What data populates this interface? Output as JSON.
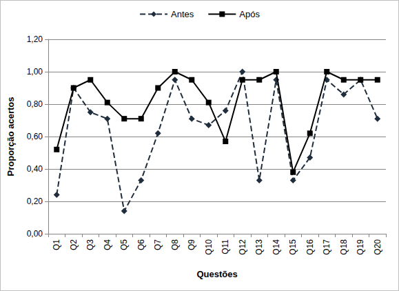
{
  "chart_data": {
    "type": "line",
    "x_label": "Questões",
    "y_label": "Proporção acertos",
    "categories": [
      "Q1",
      "Q2",
      "Q3",
      "Q4",
      "Q5",
      "Q6",
      "Q7",
      "Q8",
      "Q9",
      "Q10",
      "Q11",
      "Q12",
      "Q13",
      "Q14",
      "Q15",
      "Q16",
      "Q17",
      "Q18",
      "Q19",
      "Q20"
    ],
    "series": [
      {
        "name": "Antes",
        "color": "#1f2d3d",
        "marker": "diamond",
        "line_style": "dashed",
        "values": [
          0.24,
          0.9,
          0.75,
          0.71,
          0.14,
          0.33,
          0.62,
          0.95,
          0.71,
          0.67,
          0.76,
          1.0,
          0.33,
          0.95,
          0.33,
          0.47,
          0.95,
          0.86,
          0.95,
          0.71
        ]
      },
      {
        "name": "Após",
        "color": "#000000",
        "marker": "square",
        "line_style": "solid",
        "values": [
          0.52,
          0.9,
          0.95,
          0.81,
          0.71,
          0.71,
          0.9,
          1.0,
          0.95,
          0.81,
          0.57,
          0.95,
          0.95,
          1.0,
          0.38,
          0.62,
          1.0,
          0.95,
          0.95,
          0.95
        ]
      }
    ],
    "ylim": [
      0,
      1.2
    ],
    "yticks": [
      {
        "value": 0,
        "label": "0,00"
      },
      {
        "value": 0.2,
        "label": "0,20"
      },
      {
        "value": 0.4,
        "label": "0,40"
      },
      {
        "value": 0.6,
        "label": "0,60"
      },
      {
        "value": 0.8,
        "label": "0,80"
      },
      {
        "value": 1.0,
        "label": "1,00"
      },
      {
        "value": 1.2,
        "label": "1,20"
      }
    ],
    "grid": true,
    "legend": "top"
  }
}
